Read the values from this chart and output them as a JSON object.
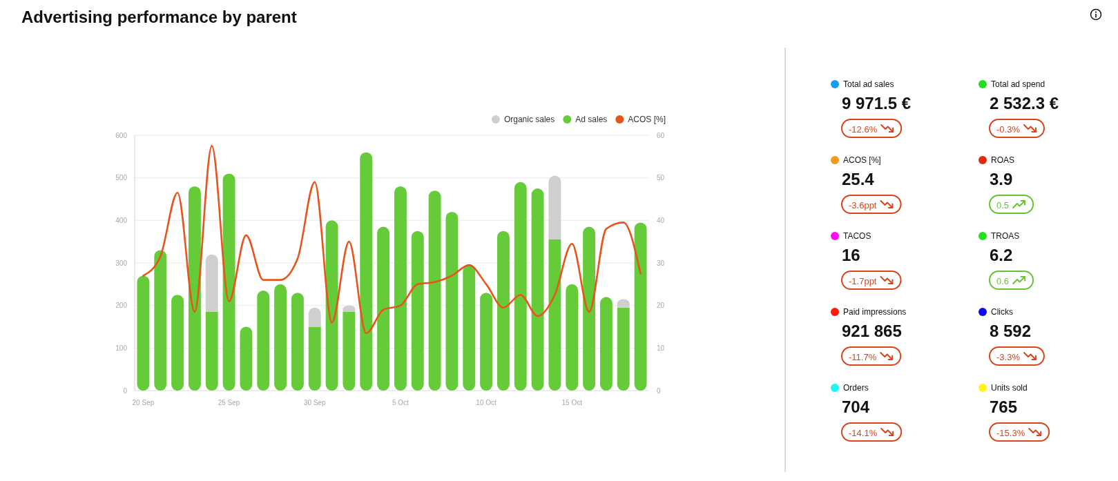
{
  "chart_data": [
    {
      "type": "bar",
      "title": "Advertising performance by parent",
      "categories": [
        "20 Sep",
        null,
        null,
        null,
        null,
        "25 Sep",
        null,
        null,
        null,
        null,
        "30 Sep",
        null,
        null,
        null,
        null,
        "5 Oct",
        null,
        null,
        null,
        null,
        "10 Oct",
        null,
        null,
        null,
        null,
        "15 Oct",
        null,
        null,
        null,
        null
      ],
      "stacked": true,
      "series": [
        {
          "name": "Ad sales",
          "color": "#65cb38",
          "values": [
            270,
            330,
            225,
            480,
            185,
            510,
            150,
            235,
            250,
            230,
            150,
            400,
            185,
            560,
            385,
            480,
            375,
            470,
            420,
            295,
            230,
            375,
            490,
            475,
            355,
            250,
            385,
            220,
            195,
            395
          ]
        },
        {
          "name": "Organic sales",
          "color": "#cfcfcf",
          "values": [
            null,
            null,
            null,
            null,
            135,
            null,
            null,
            null,
            null,
            null,
            45,
            null,
            15,
            null,
            null,
            null,
            null,
            null,
            null,
            null,
            null,
            null,
            null,
            null,
            150,
            null,
            null,
            null,
            20,
            null
          ]
        },
        {
          "name": "ACOS [%]",
          "type": "line",
          "axis": "y2",
          "color": "#e8541e",
          "values": [
            27,
            31.5,
            46.5,
            18.5,
            57.5,
            21,
            36.5,
            26,
            26,
            31,
            49,
            16,
            35,
            13.5,
            19,
            20,
            25,
            25.5,
            27,
            29.5,
            25,
            19.5,
            22.5,
            17.5,
            22.5,
            34.5,
            18.5,
            38,
            39.5,
            27.5
          ]
        }
      ],
      "ylim": [
        0,
        600
      ],
      "yticks": [
        0,
        100,
        200,
        300,
        400,
        500,
        600
      ],
      "y2lim": [
        0,
        60
      ],
      "y2ticks": [
        0,
        10,
        20,
        30,
        40,
        50,
        60
      ],
      "grid": "y",
      "legend": "top right"
    },
    {
      "type": "other",
      "categories": [
        "Total ad sales"
      ],
      "series": [
        {
          "values": [
            9971.5
          ],
          "value_labels": [
            "9 971.5 €"
          ],
          "colors": [
            "#1c9cf0"
          ]
        },
        {
          "values": [
            -12.6
          ],
          "value_labels": [
            "-12.6%"
          ],
          "colors": [
            "#d9441a"
          ]
        }
      ]
    },
    {
      "type": "other",
      "categories": [
        "Total ad spend"
      ],
      "series": [
        {
          "values": [
            2532.3
          ],
          "value_labels": [
            "2 532.3 €"
          ],
          "colors": [
            "#22e01e"
          ]
        },
        {
          "values": [
            -0.3
          ],
          "value_labels": [
            "-0.3%"
          ],
          "colors": [
            "#d9441a"
          ]
        }
      ]
    },
    {
      "type": "other",
      "categories": [
        "ACOS [%]"
      ],
      "series": [
        {
          "values": [
            25.4
          ],
          "value_labels": [
            "25.4"
          ],
          "colors": [
            "#f59a1c"
          ]
        },
        {
          "values": [
            -3.6
          ],
          "value_labels": [
            "-3.6ppt"
          ],
          "colors": [
            "#d9441a"
          ]
        }
      ]
    },
    {
      "type": "other",
      "categories": [
        "ROAS"
      ],
      "series": [
        {
          "values": [
            3.9
          ],
          "value_labels": [
            "3.9"
          ],
          "colors": [
            "#e22a0c"
          ]
        },
        {
          "values": [
            0.5
          ],
          "value_labels": [
            "0.5"
          ],
          "colors": [
            "#66c439"
          ]
        }
      ]
    },
    {
      "type": "other",
      "categories": [
        "TACOS"
      ],
      "series": [
        {
          "values": [
            16
          ],
          "value_labels": [
            "16"
          ],
          "colors": [
            "#ff10f0"
          ]
        },
        {
          "values": [
            -1.7
          ],
          "value_labels": [
            "-1.7ppt"
          ],
          "colors": [
            "#d9441a"
          ]
        }
      ]
    },
    {
      "type": "other",
      "categories": [
        "TROAS"
      ],
      "series": [
        {
          "values": [
            6.2
          ],
          "value_labels": [
            "6.2"
          ],
          "colors": [
            "#22e01e"
          ]
        },
        {
          "values": [
            0.6
          ],
          "value_labels": [
            "0.6"
          ],
          "colors": [
            "#66c439"
          ]
        }
      ]
    },
    {
      "type": "other",
      "categories": [
        "Paid impressions"
      ],
      "series": [
        {
          "values": [
            921865
          ],
          "value_labels": [
            "921 865"
          ],
          "colors": [
            "#ff1a0e"
          ]
        },
        {
          "values": [
            -11.7
          ],
          "value_labels": [
            "-11.7%"
          ],
          "colors": [
            "#d9441a"
          ]
        }
      ]
    },
    {
      "type": "other",
      "categories": [
        "Clicks"
      ],
      "series": [
        {
          "values": [
            8592
          ],
          "value_labels": [
            "8 592"
          ],
          "colors": [
            "#0a0af5"
          ]
        },
        {
          "values": [
            -3.3
          ],
          "value_labels": [
            "-3.3%"
          ],
          "colors": [
            "#d9441a"
          ]
        }
      ]
    },
    {
      "type": "other",
      "categories": [
        "Orders"
      ],
      "series": [
        {
          "values": [
            704
          ],
          "value_labels": [
            "704"
          ],
          "colors": [
            "#1ef5f5"
          ]
        },
        {
          "values": [
            -14.1
          ],
          "value_labels": [
            "-14.1%"
          ],
          "colors": [
            "#d9441a"
          ]
        }
      ]
    },
    {
      "type": "other",
      "categories": [
        "Units sold"
      ],
      "series": [
        {
          "values": [
            765
          ],
          "value_labels": [
            "765"
          ],
          "colors": [
            "#fff51a"
          ]
        },
        {
          "values": [
            -15.3
          ],
          "value_labels": [
            "-15.3%"
          ],
          "colors": [
            "#d9441a"
          ]
        }
      ]
    }
  ]
}
